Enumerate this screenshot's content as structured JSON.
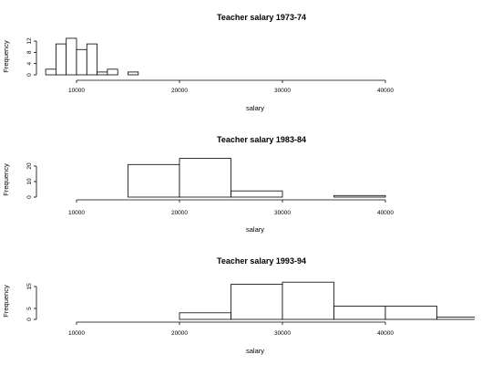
{
  "chart_data": [
    {
      "type": "histogram",
      "title": "Teacher salary 1973-74",
      "xlabel": "salary",
      "ylabel": "Frequency",
      "xlim": [
        0,
        40000
      ],
      "x_ticks": [
        10000,
        20000,
        30000,
        40000
      ],
      "y_ticks": [
        0,
        4,
        8,
        12
      ],
      "grid": false,
      "bins": [
        {
          "from": 7000,
          "to": 8000,
          "count": 2
        },
        {
          "from": 8000,
          "to": 9000,
          "count": 11
        },
        {
          "from": 9000,
          "to": 10000,
          "count": 13
        },
        {
          "from": 10000,
          "to": 11000,
          "count": 9
        },
        {
          "from": 11000,
          "to": 12000,
          "count": 11
        },
        {
          "from": 12000,
          "to": 13000,
          "count": 1
        },
        {
          "from": 13000,
          "to": 14000,
          "count": 2
        },
        {
          "from": 14000,
          "to": 15000,
          "count": 0
        },
        {
          "from": 15000,
          "to": 16000,
          "count": 1
        }
      ]
    },
    {
      "type": "histogram",
      "title": "Teacher salary 1983-84",
      "xlabel": "salary",
      "ylabel": "Frequency",
      "xlim": [
        0,
        40000
      ],
      "x_ticks": [
        10000,
        20000,
        30000,
        40000
      ],
      "y_ticks": [
        0,
        10,
        20
      ],
      "grid": false,
      "bins": [
        {
          "from": 10000,
          "to": 15000,
          "count": 0
        },
        {
          "from": 15000,
          "to": 20000,
          "count": 21
        },
        {
          "from": 20000,
          "to": 25000,
          "count": 25
        },
        {
          "from": 25000,
          "to": 30000,
          "count": 4
        },
        {
          "from": 30000,
          "to": 35000,
          "count": 0
        },
        {
          "from": 35000,
          "to": 40000,
          "count": 1
        }
      ]
    },
    {
      "type": "histogram",
      "title": "Teacher salary 1993-94",
      "xlabel": "salary",
      "ylabel": "Frequency",
      "xlim": [
        0,
        40000
      ],
      "x_ticks": [
        10000,
        20000,
        30000,
        40000
      ],
      "y_ticks": [
        0,
        5,
        15
      ],
      "grid": false,
      "bins": [
        {
          "from": 10000,
          "to": 20000,
          "count": 0
        },
        {
          "from": 20000,
          "to": 25000,
          "count": 3
        },
        {
          "from": 25000,
          "to": 30000,
          "count": 16
        },
        {
          "from": 30000,
          "to": 35000,
          "count": 17
        },
        {
          "from": 35000,
          "to": 40000,
          "count": 6
        },
        {
          "from": 40000,
          "to": 45000,
          "count": 6
        },
        {
          "from": 45000,
          "to": 50000,
          "count": 1
        }
      ]
    }
  ]
}
